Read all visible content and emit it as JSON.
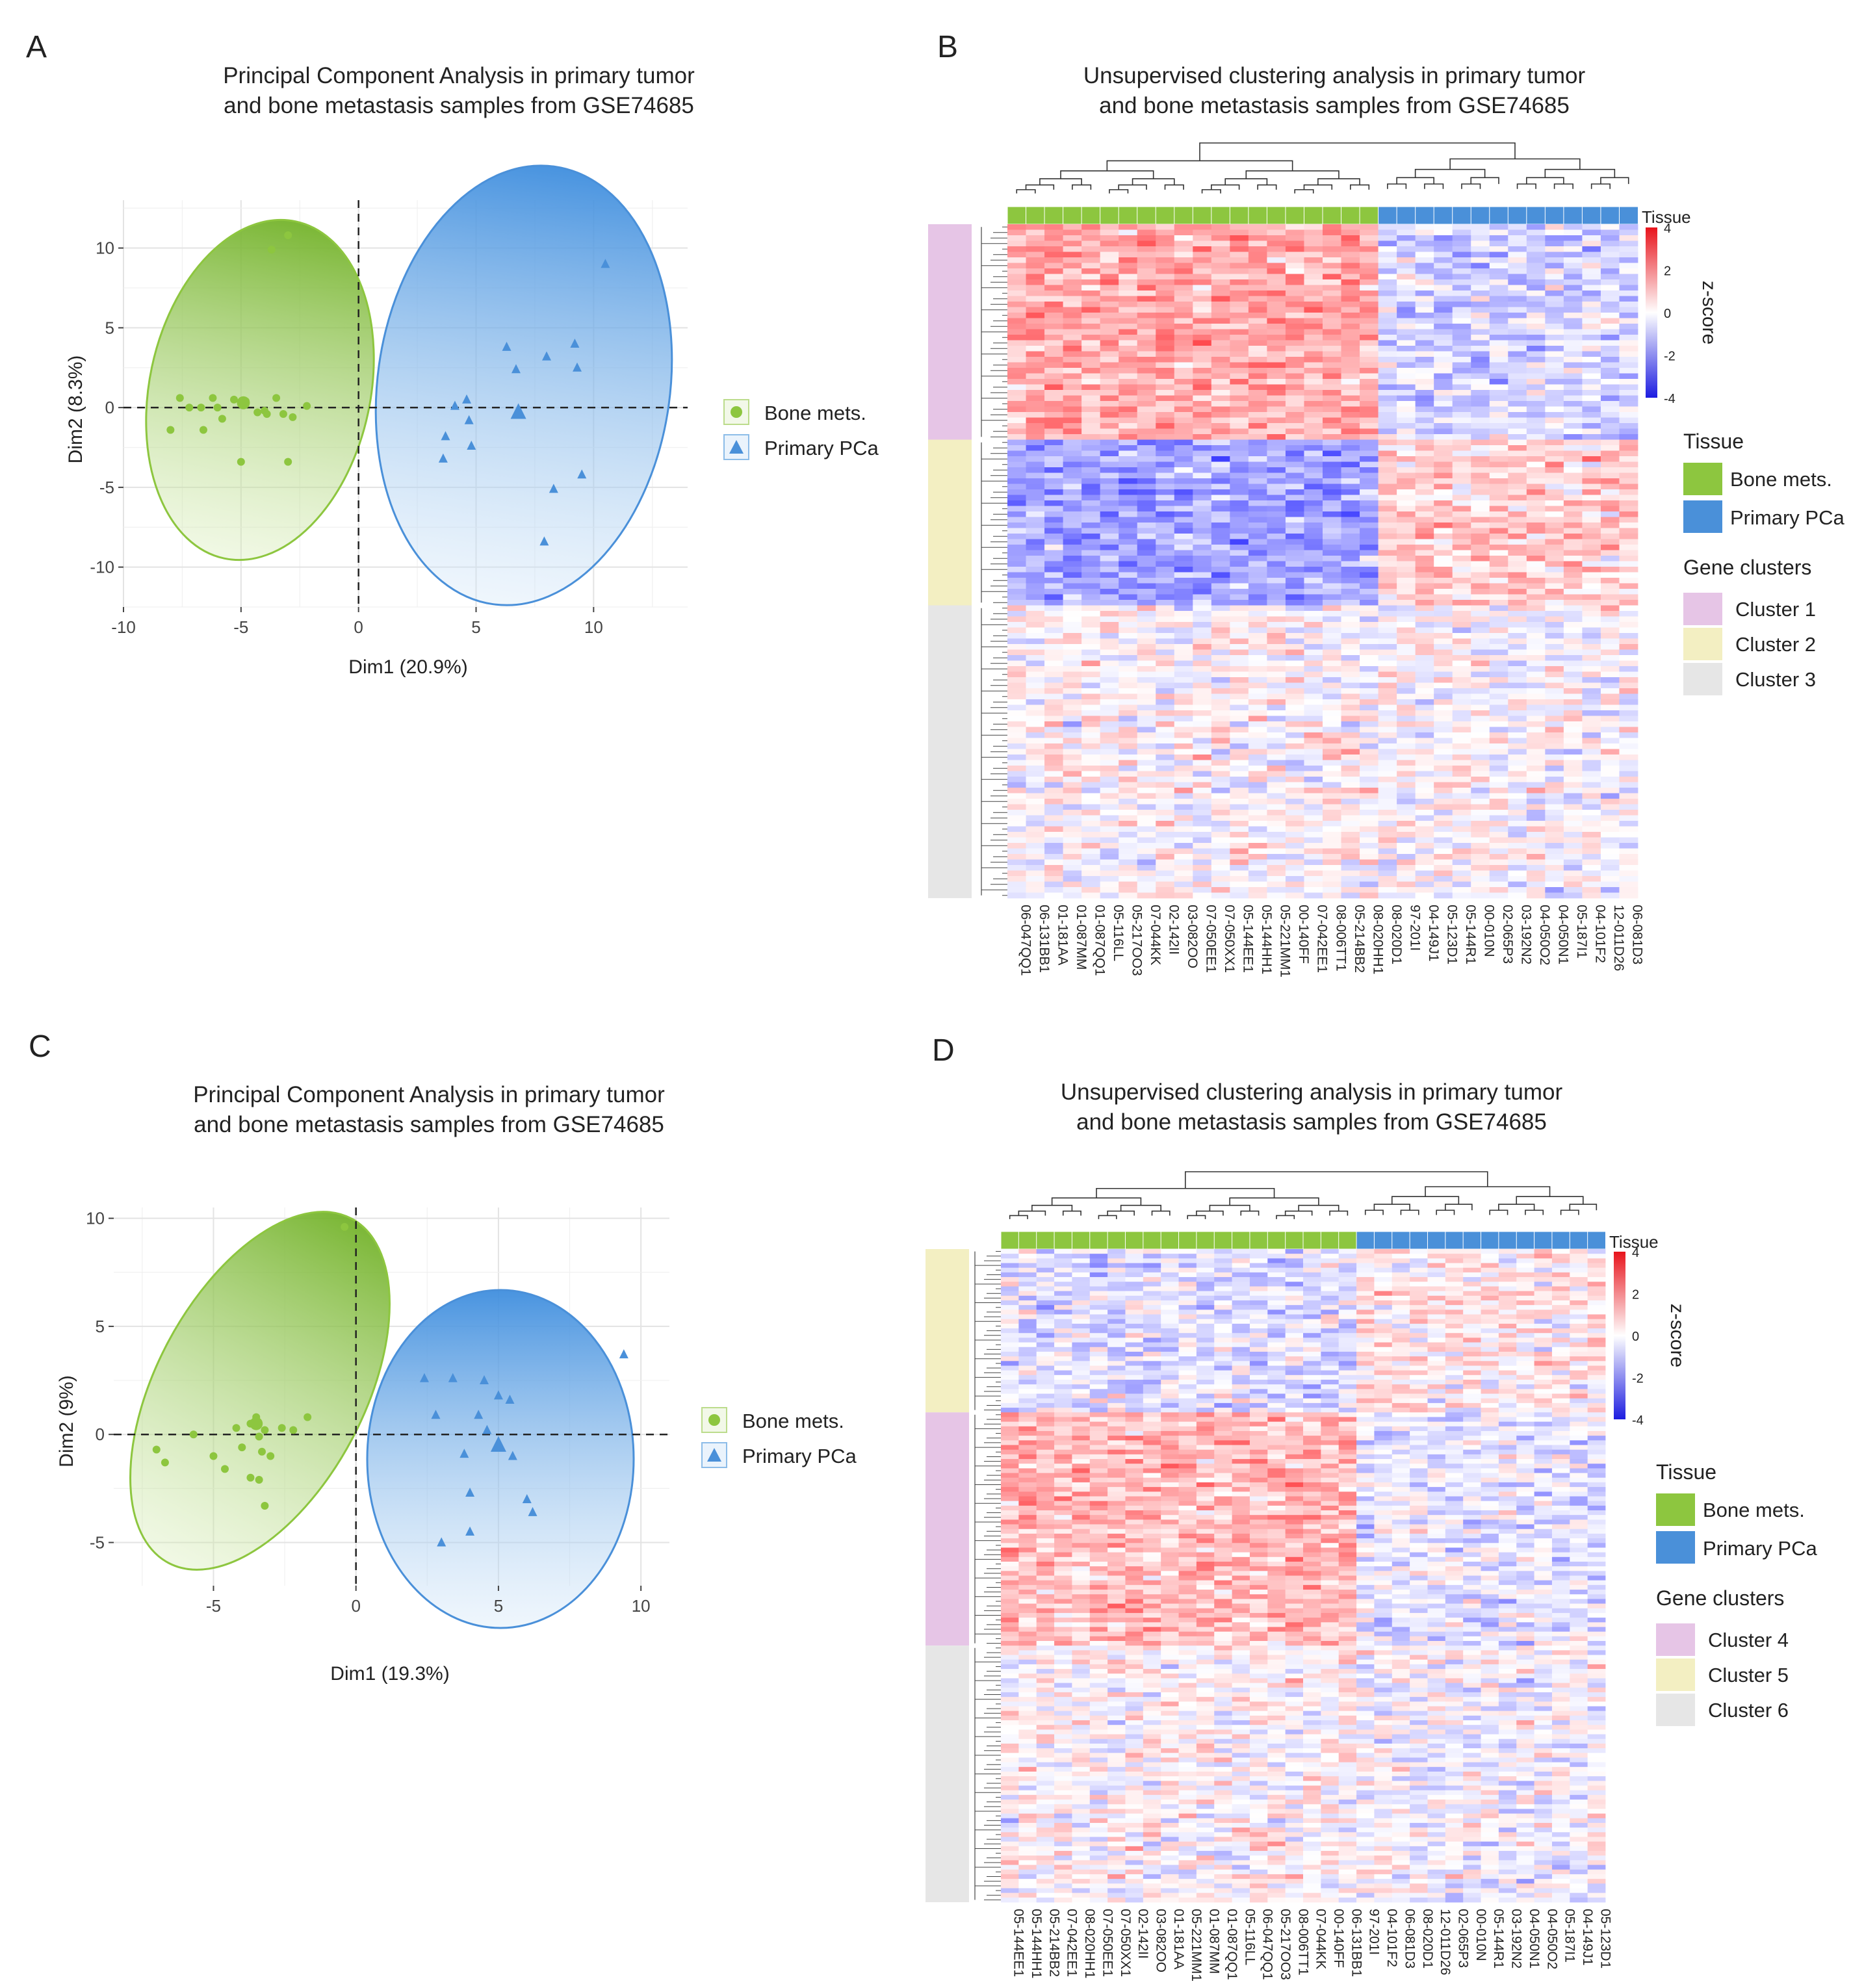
{
  "chart_data": [
    {
      "panel": "A",
      "type": "scatter",
      "title": "Principal Component Analysis in primary tumor\nand bone metastasis samples from GSE74685",
      "xlabel": "Dim1 (20.9%)",
      "ylabel": "Dim2 (8.3%)",
      "xlim": [
        -10,
        14
      ],
      "ylim": [
        -12.5,
        13
      ],
      "xticks": [
        "-10",
        "-5",
        "0",
        "5",
        "10"
      ],
      "yticks": [
        "-10",
        "-5",
        "0",
        "5",
        "10"
      ],
      "grid": true,
      "legend_position": "right",
      "series": [
        {
          "name": "Bone mets.",
          "color": "#8dc63f",
          "marker": "circle",
          "points": [
            [
              -3.0,
              10.8
            ],
            [
              -3.7,
              9.9
            ],
            [
              -7.6,
              0.6
            ],
            [
              -7.2,
              0.0
            ],
            [
              -6.7,
              0.0
            ],
            [
              -6.2,
              0.6
            ],
            [
              -5.3,
              0.5
            ],
            [
              -4.8,
              0.4
            ],
            [
              -4.3,
              -0.3
            ],
            [
              -3.9,
              -0.4
            ],
            [
              -3.5,
              0.6
            ],
            [
              -3.2,
              -0.4
            ],
            [
              -2.8,
              -0.6
            ],
            [
              -2.2,
              0.1
            ],
            [
              -8.0,
              -1.4
            ],
            [
              -6.6,
              -1.4
            ],
            [
              -5.8,
              -0.7
            ],
            [
              -5.0,
              -3.4
            ],
            [
              -3.0,
              -3.4
            ],
            [
              -4.0,
              -0.2
            ],
            [
              -6.0,
              0.0
            ]
          ],
          "centroid": [
            -4.9,
            0.3
          ]
        },
        {
          "name": "Primary PCa",
          "color": "#4a90d9",
          "marker": "triangle",
          "points": [
            [
              10.5,
              9.0
            ],
            [
              6.3,
              3.8
            ],
            [
              8.0,
              3.2
            ],
            [
              9.2,
              4.0
            ],
            [
              9.3,
              2.5
            ],
            [
              6.7,
              2.4
            ],
            [
              4.6,
              0.5
            ],
            [
              4.1,
              0.1
            ],
            [
              4.7,
              -0.8
            ],
            [
              3.7,
              -1.8
            ],
            [
              4.8,
              -2.4
            ],
            [
              3.6,
              -3.2
            ],
            [
              8.3,
              -5.1
            ],
            [
              9.5,
              -4.2
            ],
            [
              7.9,
              -8.4
            ]
          ],
          "centroid": [
            6.8,
            -0.3
          ]
        }
      ]
    },
    {
      "panel": "B",
      "type": "heatmap",
      "title": "Unsupervised clustering analysis in primary tumor\nand bone metastasis samples from GSE74685",
      "columns": [
        "06-047QQ1",
        "06-131BB1",
        "01-181AA",
        "01-087MM",
        "01-087QQ1",
        "05-116LL",
        "05-217OO3",
        "07-044KK",
        "02-142II",
        "03-082OO",
        "07-050EE1",
        "07-050XX1",
        "05-144EE1",
        "05-144HH1",
        "05-221MM1",
        "00-140FF",
        "07-042EE1",
        "08-006TT1",
        "05-214BB2",
        "08-020HH1",
        "08-020D1",
        "97-201I",
        "04-149J1",
        "05-123D1",
        "05-144R1",
        "00-010N",
        "02-065P3",
        "03-192N2",
        "04-050O2",
        "04-050N1",
        "05-187I1",
        "04-101F2",
        "12-011D26",
        "06-081D3"
      ],
      "tissue": [
        "Bone mets.",
        "Bone mets.",
        "Bone mets.",
        "Bone mets.",
        "Bone mets.",
        "Bone mets.",
        "Bone mets.",
        "Bone mets.",
        "Bone mets.",
        "Bone mets.",
        "Bone mets.",
        "Bone mets.",
        "Bone mets.",
        "Bone mets.",
        "Bone mets.",
        "Bone mets.",
        "Bone mets.",
        "Bone mets.",
        "Bone mets.",
        "Bone mets.",
        "Primary PCa",
        "Primary PCa",
        "Primary PCa",
        "Primary PCa",
        "Primary PCa",
        "Primary PCa",
        "Primary PCa",
        "Primary PCa",
        "Primary PCa",
        "Primary PCa",
        "Primary PCa",
        "Primary PCa",
        "Primary PCa",
        "Primary PCa"
      ],
      "row_clusters": [
        {
          "name": "Cluster 1",
          "rows": 39,
          "bone_mets_mean": 1.2,
          "primary_mean": -0.6
        },
        {
          "name": "Cluster 2",
          "rows": 30,
          "bone_mets_mean": -1.3,
          "primary_mean": 0.7
        },
        {
          "name": "Cluster 3",
          "rows": 53,
          "bone_mets_mean": 0.1,
          "primary_mean": 0.0
        }
      ],
      "colorbar": {
        "label": "z-score",
        "ticks": [
          "4",
          "2",
          "0",
          "-2",
          "-4"
        ],
        "range": [
          -4,
          4
        ]
      },
      "legend": {
        "tissue_title": "Tissue",
        "clusters_title": "Gene clusters"
      }
    },
    {
      "panel": "C",
      "type": "scatter",
      "title": "Principal Component Analysis in primary tumor\nand bone metastasis samples from GSE74685",
      "xlabel": "Dim1 (19.3%)",
      "ylabel": "Dim2 (9%)",
      "xlim": [
        -8.5,
        11
      ],
      "ylim": [
        -7,
        10.5
      ],
      "xticks": [
        "-5",
        "0",
        "5",
        "10"
      ],
      "yticks": [
        "-5",
        "0",
        "5",
        "10"
      ],
      "grid": true,
      "legend_position": "right",
      "series": [
        {
          "name": "Bone mets.",
          "color": "#8dc63f",
          "marker": "circle",
          "points": [
            [
              -0.4,
              9.6
            ],
            [
              -7.0,
              -0.7
            ],
            [
              -6.7,
              -1.3
            ],
            [
              -5.7,
              0.0
            ],
            [
              -5.0,
              -1.0
            ],
            [
              -4.2,
              0.3
            ],
            [
              -4.0,
              -0.6
            ],
            [
              -3.7,
              0.5
            ],
            [
              -3.5,
              0.8
            ],
            [
              -3.3,
              -0.8
            ],
            [
              -3.2,
              0.2
            ],
            [
              -3.0,
              -1.0
            ],
            [
              -2.6,
              0.3
            ],
            [
              -2.2,
              0.2
            ],
            [
              -1.7,
              0.8
            ],
            [
              -3.7,
              -2.0
            ],
            [
              -3.4,
              -2.1
            ],
            [
              -3.2,
              -3.3
            ],
            [
              -4.6,
              -1.6
            ],
            [
              -3.4,
              -0.1
            ]
          ],
          "centroid": [
            -3.5,
            0.5
          ]
        },
        {
          "name": "Primary PCa",
          "color": "#4a90d9",
          "marker": "triangle",
          "points": [
            [
              9.4,
              3.7
            ],
            [
              2.4,
              2.6
            ],
            [
              3.4,
              2.6
            ],
            [
              4.5,
              2.5
            ],
            [
              5.0,
              1.8
            ],
            [
              5.4,
              1.6
            ],
            [
              2.8,
              0.9
            ],
            [
              4.3,
              0.9
            ],
            [
              4.6,
              0.2
            ],
            [
              3.8,
              -0.9
            ],
            [
              5.5,
              -1.0
            ],
            [
              4.0,
              -2.7
            ],
            [
              6.0,
              -3.0
            ],
            [
              6.2,
              -3.6
            ],
            [
              4.0,
              -4.5
            ],
            [
              3.0,
              -5.0
            ]
          ],
          "centroid": [
            5.0,
            -0.5
          ]
        }
      ]
    },
    {
      "panel": "D",
      "type": "heatmap",
      "title": "Unsupervised clustering analysis in primary tumor\nand bone metastasis samples from GSE74685",
      "columns": [
        "05-144EE1",
        "05-144HH1",
        "05-214BB2",
        "07-042EE1",
        "08-020HH1",
        "07-050EE1",
        "07-050XX1",
        "02-142II",
        "03-082OO",
        "01-181AA",
        "05-221MM1",
        "01-087MM",
        "01-087QQ1",
        "05-116LL",
        "06-047QQ1",
        "05-217OO3",
        "08-006TT1",
        "07-044KK",
        "00-140FF",
        "06-131BB1",
        "97-201I",
        "04-101F2",
        "06-081D3",
        "08-020D1",
        "12-011D26",
        "02-065P3",
        "00-010N",
        "05-144R1",
        "03-192N2",
        "04-050N1",
        "04-050O2",
        "05-187I1",
        "04-149J1",
        "05-123D1"
      ],
      "tissue": [
        "Bone mets.",
        "Bone mets.",
        "Bone mets.",
        "Bone mets.",
        "Bone mets.",
        "Bone mets.",
        "Bone mets.",
        "Bone mets.",
        "Bone mets.",
        "Bone mets.",
        "Bone mets.",
        "Bone mets.",
        "Bone mets.",
        "Bone mets.",
        "Bone mets.",
        "Bone mets.",
        "Bone mets.",
        "Bone mets.",
        "Bone mets.",
        "Bone mets.",
        "Primary PCa",
        "Primary PCa",
        "Primary PCa",
        "Primary PCa",
        "Primary PCa",
        "Primary PCa",
        "Primary PCa",
        "Primary PCa",
        "Primary PCa",
        "Primary PCa",
        "Primary PCa",
        "Primary PCa",
        "Primary PCa",
        "Primary PCa"
      ],
      "row_clusters": [
        {
          "name": "Cluster 5",
          "rows": 35,
          "bone_mets_mean": -0.4,
          "primary_mean": 0.3
        },
        {
          "name": "Cluster 4",
          "rows": 50,
          "bone_mets_mean": 1.0,
          "primary_mean": -0.3
        },
        {
          "name": "Cluster 6",
          "rows": 55,
          "bone_mets_mean": 0.1,
          "primary_mean": -0.1
        }
      ],
      "colorbar": {
        "label": "z-score",
        "ticks": [
          "4",
          "2",
          "0",
          "-2",
          "-4"
        ],
        "range": [
          -4,
          4
        ]
      },
      "legend": {
        "tissue_title": "Tissue",
        "clusters_title": "Gene clusters"
      }
    }
  ],
  "panels": {
    "A": "A",
    "B": "B",
    "C": "C",
    "D": "D"
  },
  "legend_text": {
    "bone": "Bone mets.",
    "primary": "Primary PCa",
    "tissue_bar": "Tissue",
    "cluster1": "Cluster 1",
    "cluster2": "Cluster 2",
    "cluster3": "Cluster 3",
    "cluster4": "Cluster 4",
    "cluster5": "Cluster 5",
    "cluster6": "Cluster 6"
  },
  "colors": {
    "bone": "#8dc63f",
    "primary": "#4a90d9",
    "cluster_pink": "#e6c5e6",
    "cluster_yellow": "#f3efc2",
    "cluster_gray": "#e6e6e6",
    "high": "#e8141c",
    "low": "#1c1ce0"
  }
}
